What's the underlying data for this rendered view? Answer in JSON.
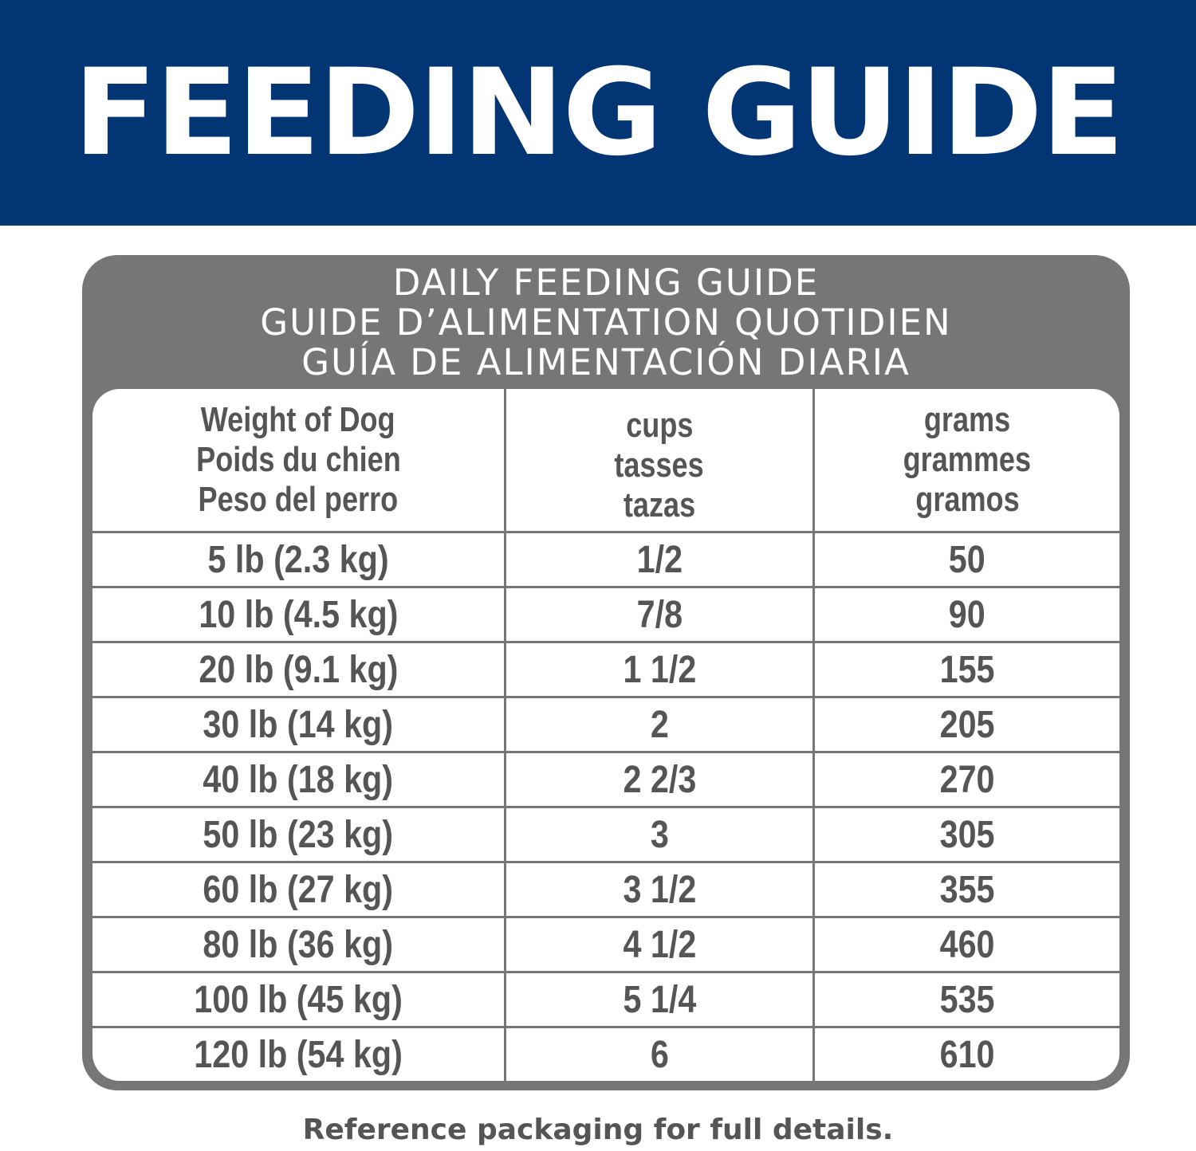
{
  "banner": {
    "title": "FEEDING GUIDE"
  },
  "guide": {
    "heading_lines": [
      "DAILY FEEDING GUIDE",
      "GUIDE D’ALIMENTATION QUOTIDIEN",
      "GUÍA DE ALIMENTACIÓN DIARIA"
    ],
    "columns": [
      {
        "lines": [
          "Weight of Dog",
          "Poids du chien",
          "Peso del perro"
        ]
      },
      {
        "lines": [
          "cups",
          "tasses",
          "tazas"
        ]
      },
      {
        "lines": [
          "grams",
          "grammes",
          "gramos"
        ]
      }
    ],
    "rows": [
      {
        "weight": "5 lb (2.3 kg)",
        "cups": "1/2",
        "grams": "50"
      },
      {
        "weight": "10 lb (4.5 kg)",
        "cups": "7/8",
        "grams": "90"
      },
      {
        "weight": "20 lb (9.1 kg)",
        "cups": "1 1/2",
        "grams": "155"
      },
      {
        "weight": "30 lb (14 kg)",
        "cups": "2",
        "grams": "205"
      },
      {
        "weight": "40 lb (18 kg)",
        "cups": "2 2/3",
        "grams": "270"
      },
      {
        "weight": "50 lb (23 kg)",
        "cups": "3",
        "grams": "305"
      },
      {
        "weight": "60 lb (27 kg)",
        "cups": "3 1/2",
        "grams": "355"
      },
      {
        "weight": "80 lb (36 kg)",
        "cups": "4 1/2",
        "grams": "460"
      },
      {
        "weight": "100 lb (45 kg)",
        "cups": "5 1/4",
        "grams": "535"
      },
      {
        "weight": "120 lb (54 kg)",
        "cups": "6",
        "grams": "610"
      }
    ]
  },
  "footnote": "Reference packaging for full details.",
  "colors": {
    "banner_blue": "#013573",
    "frame_gray": "#767676",
    "text_gray": "#555555"
  }
}
